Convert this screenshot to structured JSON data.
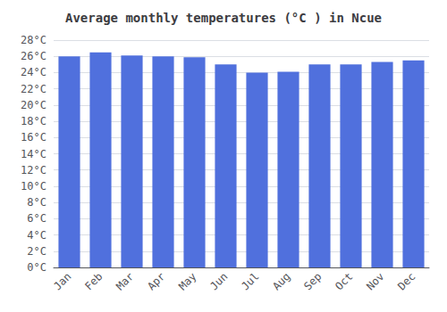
{
  "chart_data": {
    "type": "bar",
    "title": "Average monthly temperatures (°C ) in Ncue",
    "categories": [
      "Jan",
      "Feb",
      "Mar",
      "Apr",
      "May",
      "Jun",
      "Jul",
      "Aug",
      "Sep",
      "Oct",
      "Nov",
      "Dec"
    ],
    "values": [
      26.0,
      26.5,
      26.1,
      26.0,
      25.9,
      25.0,
      24.0,
      24.1,
      25.0,
      25.0,
      25.3,
      25.5
    ],
    "ylim": [
      0,
      28
    ],
    "yticks": [
      {
        "value": 0,
        "label": "0°C"
      },
      {
        "value": 2,
        "label": "2°C"
      },
      {
        "value": 4,
        "label": "4°C"
      },
      {
        "value": 6,
        "label": "6°C"
      },
      {
        "value": 8,
        "label": "8°C"
      },
      {
        "value": 10,
        "label": "10°C"
      },
      {
        "value": 12,
        "label": "12°C"
      },
      {
        "value": 14,
        "label": "14°C"
      },
      {
        "value": 16,
        "label": "16°C"
      },
      {
        "value": 18,
        "label": "18°C"
      },
      {
        "value": 20,
        "label": "20°C"
      },
      {
        "value": 22,
        "label": "22°C"
      },
      {
        "value": 24,
        "label": "24°C"
      },
      {
        "value": 26,
        "label": "26°C"
      },
      {
        "value": 28,
        "label": "28°C"
      }
    ],
    "grid": true
  }
}
